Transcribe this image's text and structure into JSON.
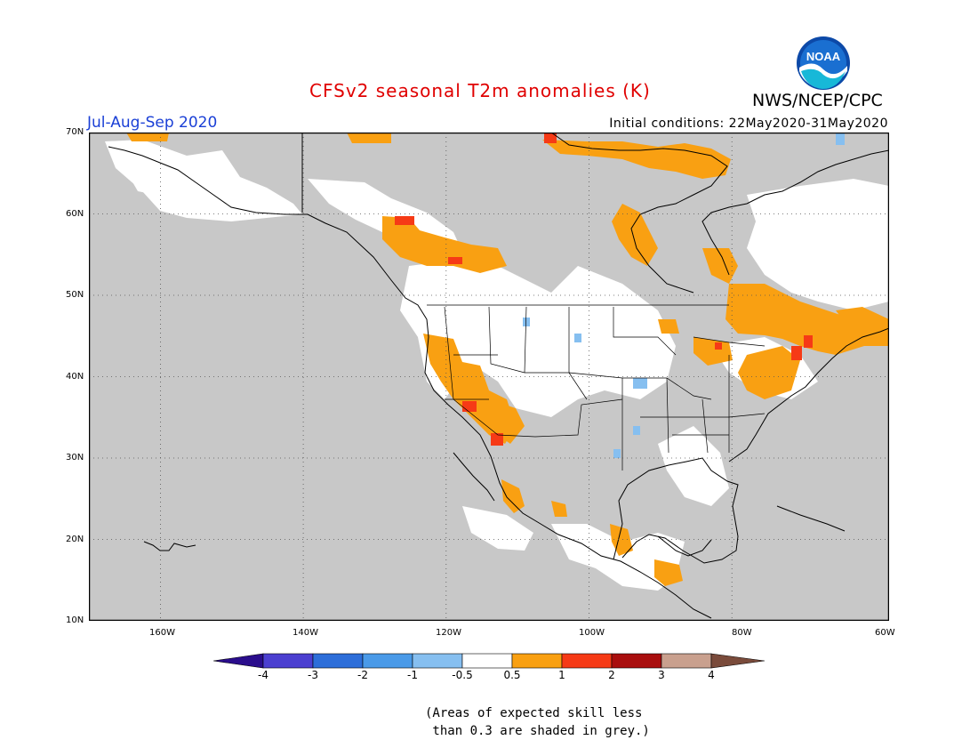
{
  "header": {
    "title": "CFSv2 seasonal T2m anomalies (K)",
    "season": "Jul-Aug-Sep 2020",
    "initial_conditions": "Initial conditions: 22May2020-31May2020",
    "agency": "NWS/NCEP/CPC",
    "logo_text": "NOAA"
  },
  "map": {
    "lon_range": [
      -172,
      -60
    ],
    "lat_range": [
      10,
      70
    ],
    "lat_ticks": [
      "70N",
      "60N",
      "50N",
      "40N",
      "30N",
      "20N",
      "10N"
    ],
    "lon_ticks": [
      "160W",
      "140W",
      "120W",
      "100W",
      "80W",
      "60W"
    ],
    "grid": "dotted",
    "ocean_color": "#c8c8c8",
    "land_color": "#c8c8c8",
    "skill_mask_color": "#c8c8c8",
    "coast_color": "#000000"
  },
  "legend": {
    "labels": [
      "-4",
      "-3",
      "-2",
      "-1",
      "-0.5",
      "0.5",
      "1",
      "2",
      "3",
      "4"
    ],
    "colors": [
      "#2a0d8c",
      "#4b3fd0",
      "#2d6ed9",
      "#4a9ae8",
      "#86bff0",
      "#ffffff",
      "#f9a012",
      "#f63a16",
      "#a90e0e",
      "#c9a08e",
      "#7a4b3b"
    ]
  },
  "note": "(Areas of expected skill less\n than 0.3 are shaded in grey.)"
}
